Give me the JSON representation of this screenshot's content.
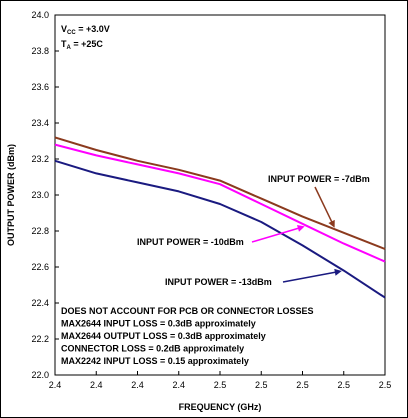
{
  "chart_data": {
    "type": "line",
    "xlabel": "FREQUENCY (GHz)",
    "ylabel": "OUTPUT POWER (dBm)",
    "ylim": [
      22.0,
      24.0
    ],
    "y_ticks": [
      "22.0",
      "22.2",
      "22.4",
      "22.6",
      "22.8",
      "23.0",
      "23.2",
      "23.4",
      "23.6",
      "23.8",
      "24.0"
    ],
    "x_ticks": [
      "2.4",
      "2.4",
      "2.4",
      "2.4",
      "2.5",
      "2.5",
      "2.5",
      "2.5",
      "2.5"
    ],
    "grid": false,
    "conditions": [
      {
        "main": "V",
        "sub": "CC",
        "rest": " = +3.0V"
      },
      {
        "main": "T",
        "sub": "A",
        "rest": " = +25C"
      }
    ],
    "series": [
      {
        "name": "INPUT POWER = -7dBm",
        "color": "#8b3a1e",
        "points": [
          [
            0,
            23.32
          ],
          [
            1,
            23.25
          ],
          [
            2,
            23.19
          ],
          [
            3,
            23.14
          ],
          [
            4,
            23.08
          ],
          [
            5,
            22.98
          ],
          [
            6,
            22.88
          ],
          [
            7,
            22.79
          ],
          [
            8,
            22.7
          ]
        ]
      },
      {
        "name": "INPUT POWER = -10dBm",
        "color": "#ff00ff",
        "points": [
          [
            0,
            23.28
          ],
          [
            1,
            23.22
          ],
          [
            2,
            23.17
          ],
          [
            3,
            23.12
          ],
          [
            4,
            23.06
          ],
          [
            5,
            22.95
          ],
          [
            6,
            22.84
          ],
          [
            7,
            22.73
          ],
          [
            8,
            22.63
          ]
        ]
      },
      {
        "name": "INPUT POWER = -13dBm",
        "color": "#1a1a80",
        "points": [
          [
            0,
            23.19
          ],
          [
            1,
            23.12
          ],
          [
            2,
            23.07
          ],
          [
            3,
            23.02
          ],
          [
            4,
            22.95
          ],
          [
            5,
            22.85
          ],
          [
            6,
            22.72
          ],
          [
            7,
            22.58
          ],
          [
            8,
            22.43
          ]
        ]
      }
    ],
    "series_labels": [
      {
        "text": "INPUT POWER = -7dBm",
        "series": 0,
        "at_x": 6.8
      },
      {
        "text": "INPUT POWER = -10dBm",
        "series": 1,
        "at_x": 6.1
      },
      {
        "text": "INPUT POWER = -13dBm",
        "series": 2,
        "at_x": 7.0
      }
    ],
    "notes": [
      "DOES NOT ACCOUNT FOR PCB OR CONNECTOR LOSSES",
      "MAX2644 INPUT LOSS = 0.3dB approximately",
      "MAX2644 OUTPUT LOSS = 0.3dB approximately",
      "CONNECTOR LOSS = 0.2dB approximately",
      "MAX2242 INPUT LOSS = 0.15 approximately"
    ]
  }
}
